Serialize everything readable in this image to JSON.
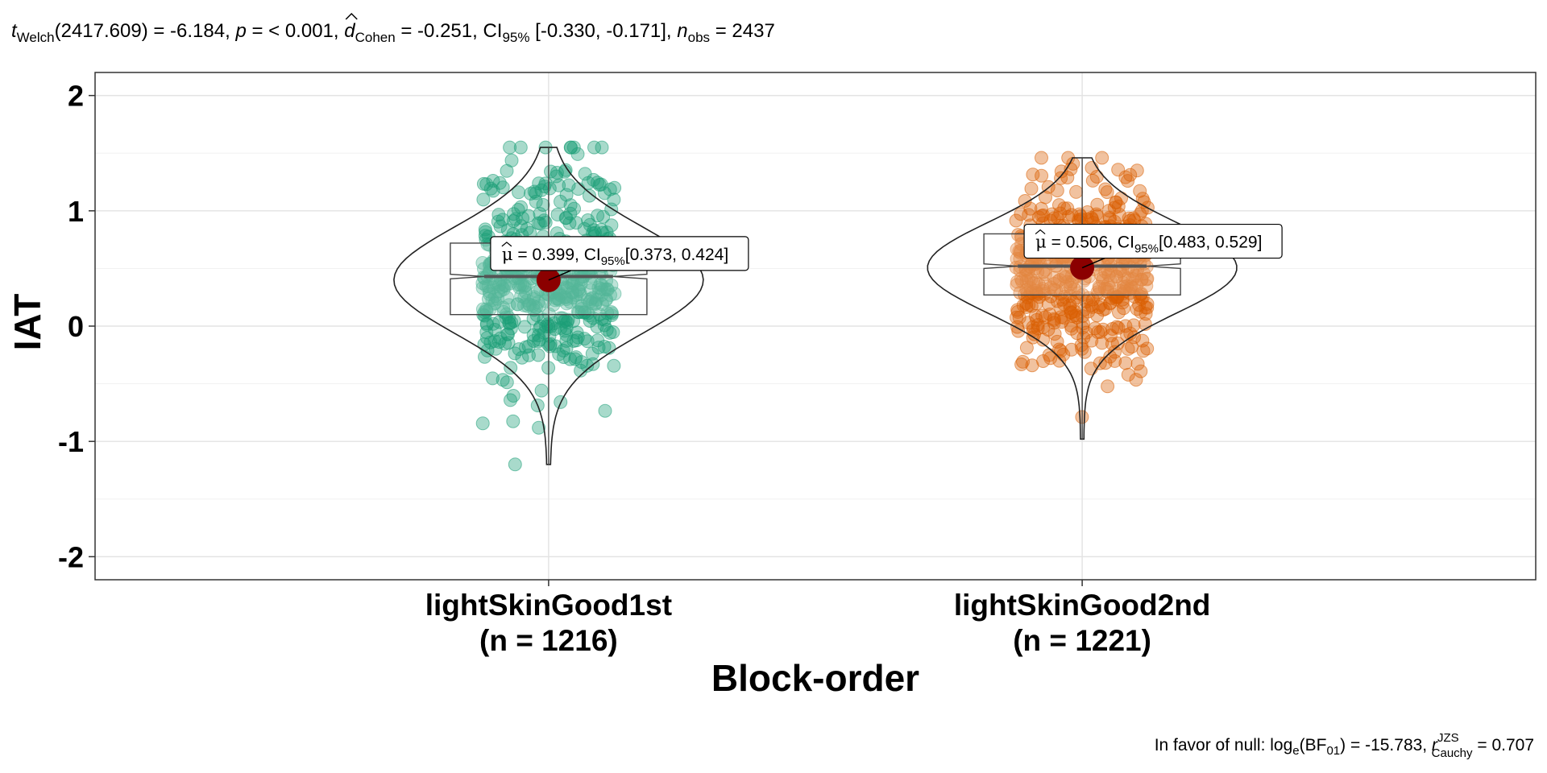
{
  "subtitle": {
    "t_symbol": "t",
    "t_sub": "Welch",
    "df_text": "(2417.609) = -6.184, ",
    "p_symbol": "p",
    "p_text": " = < 0.001, ",
    "d_symbol": "d",
    "d_sub": "Cohen",
    "d_text": " = -0.251, CI",
    "ci_sub": "95%",
    "ci_text": " [-0.330, -0.171], ",
    "n_symbol": "n",
    "n_sub": "obs",
    "n_text": " = 2437"
  },
  "caption": {
    "prefix": "In favor of null: log",
    "log_sub": "e",
    "bf_text": "(BF",
    "bf_sub": "01",
    "bf_value": ") = -15.783, ",
    "r_symbol": "r",
    "r_sup": "JZS",
    "r_sub": "Cauchy",
    "r_value": " = 0.707"
  },
  "chart_data": {
    "type": "violin-box-scatter",
    "xlabel": "Block-order",
    "ylabel": "IAT",
    "ylim": [
      -2.2,
      2.2
    ],
    "yticks": [
      -2,
      -1,
      0,
      1,
      2
    ],
    "grid": true,
    "colors": {
      "lightSkinGood1st": "#1b9e77",
      "lightSkinGood2nd": "#d95f02",
      "mean_point": "#8b0000"
    },
    "groups": [
      {
        "name": "lightSkinGood1st",
        "n_label": "(n = 1216)",
        "n": 1216,
        "mean": 0.399,
        "ci": [
          0.373,
          0.424
        ],
        "mean_label_prefix": "0.399, CI",
        "mean_label_ci_sub": "95%",
        "mean_label_suffix": "[0.373, 0.424]",
        "box": {
          "q1": 0.1,
          "median": 0.43,
          "q3": 0.72,
          "notch_low": 0.41,
          "notch_high": 0.45
        },
        "whisker": [
          -1.2,
          1.55
        ],
        "violin_range": [
          -1.2,
          1.55
        ],
        "color": "#1b9e77"
      },
      {
        "name": "lightSkinGood2nd",
        "n_label": "(n = 1221)",
        "n": 1221,
        "mean": 0.506,
        "ci": [
          0.483,
          0.529
        ],
        "mean_label_prefix": "0.506, CI",
        "mean_label_ci_sub": "95%",
        "mean_label_suffix": "[0.483, 0.529]",
        "box": {
          "q1": 0.27,
          "median": 0.52,
          "q3": 0.8,
          "notch_low": 0.5,
          "notch_high": 0.54
        },
        "whisker": [
          -0.98,
          1.46
        ],
        "violin_range": [
          -0.98,
          1.46
        ],
        "color": "#d95f02"
      }
    ]
  }
}
